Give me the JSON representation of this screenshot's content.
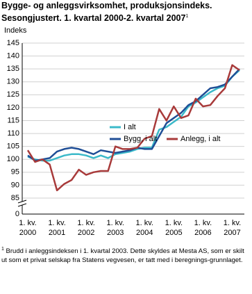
{
  "chart_data": {
    "type": "line",
    "title": "Bygge- og anleggsvirksomhet, produksjonsindeks. Sesongjustert. 1. kvartal 2000-2. kvartal 2007",
    "title_note": "1",
    "y_label": "Indeks",
    "categories": [
      "1. kv. 2000",
      null,
      null,
      null,
      "1. kv. 2001",
      null,
      null,
      null,
      "1. kv. 2002",
      null,
      null,
      null,
      "1. kv. 2003",
      null,
      null,
      null,
      "1. kv. 2004",
      null,
      null,
      null,
      "1. kv. 2005",
      null,
      null,
      null,
      "1. kv. 2006",
      null,
      null,
      null,
      "1. kv. 2007",
      null
    ],
    "series": [
      {
        "name": "I alt",
        "color": "#3bb9c9",
        "values": [
          101,
          100,
          99.5,
          99.5,
          100.5,
          101.5,
          102,
          102,
          101.5,
          100.5,
          101.5,
          100.5,
          102,
          102.5,
          103,
          104,
          104.5,
          104.5,
          111.5,
          112.5,
          114.5,
          116.5,
          120.5,
          122,
          124,
          126,
          127.5,
          128.5,
          132,
          134.5
        ]
      },
      {
        "name": "Bygg, i alt",
        "color": "#1f4e96",
        "values": [
          101.5,
          99.5,
          100,
          100.5,
          103,
          104,
          104.5,
          104,
          103,
          102,
          103.5,
          103,
          102.5,
          103,
          103.5,
          104.5,
          104,
          104,
          109,
          114,
          116,
          118,
          121,
          122.5,
          125,
          127.5,
          128,
          129,
          132,
          135
        ]
      },
      {
        "name": "Anlegg, i alt",
        "color": "#a83a3a",
        "values": [
          103.5,
          99,
          100,
          98,
          88,
          90.5,
          92,
          96,
          94,
          95,
          95.5,
          95.5,
          105,
          104,
          104,
          104.5,
          108,
          109,
          119.5,
          115,
          120.5,
          116,
          117,
          123.5,
          120.5,
          121,
          124.5,
          127.5,
          136.5,
          134.5
        ]
      }
    ],
    "ylim": [
      0,
      145
    ],
    "yticks": [
      0,
      85,
      90,
      95,
      100,
      105,
      110,
      115,
      120,
      125,
      130,
      135,
      140,
      145
    ],
    "grid": true,
    "footnote_marker": "1",
    "footnote": "Brudd i anleggsindeksen i 1. kvartal 2003. Dette skyldes at Mesta AS, som er skilt ut som et privat selskap fra Statens vegvesen, er tatt med i beregnings-grunnlaget."
  }
}
